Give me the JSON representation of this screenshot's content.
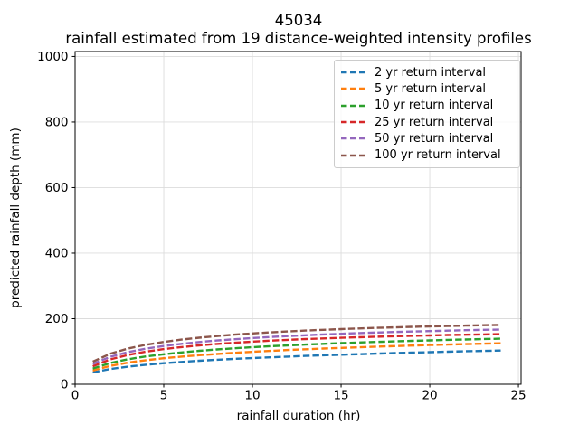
{
  "figure": {
    "background": "#ffffff"
  },
  "chart_data": {
    "type": "line",
    "title": "45034",
    "subtitle": "rainfall estimated from 19 distance-weighted intensity profiles",
    "xlabel": "rainfall duration (hr)",
    "ylabel": "predicted rainfall depth (mm)",
    "xlim": [
      0,
      25.15
    ],
    "ylim": [
      0,
      1015
    ],
    "xticks": [
      0,
      5,
      10,
      15,
      20,
      25
    ],
    "yticks": [
      0,
      200,
      400,
      600,
      800,
      1000
    ],
    "grid": true,
    "grid_color": "#dcdcdc",
    "axis_color": "#000000",
    "text_color": "#000000",
    "legend_border_color": "#cccccc",
    "legend_position": "upper right",
    "line_style": "dashed",
    "x_hours": [
      1,
      2,
      3,
      4,
      5,
      6,
      7,
      8,
      9,
      10,
      11,
      12,
      13,
      14,
      15,
      16,
      17,
      18,
      19,
      20,
      21,
      22,
      23,
      24
    ],
    "series": [
      {
        "name": "2 yr return interval",
        "color": "#1f77b4",
        "values": [
          36.0,
          46.7,
          53.9,
          59.6,
          64.2,
          68.1,
          71.6,
          74.7,
          77.5,
          80.0,
          82.3,
          84.5,
          86.5,
          88.5,
          90.2,
          91.9,
          93.5,
          95.1,
          96.5,
          97.9,
          99.3,
          100.6,
          101.8,
          103.0
        ]
      },
      {
        "name": "5 yr return interval",
        "color": "#ff7f0e",
        "values": [
          42.0,
          56.4,
          66.1,
          73.4,
          79.4,
          84.4,
          88.7,
          92.5,
          95.9,
          99.0,
          101.8,
          104.4,
          106.8,
          109.0,
          111.0,
          112.9,
          114.8,
          116.5,
          118.1,
          119.6,
          121.1,
          122.4,
          123.8,
          125.0
        ]
      },
      {
        "name": "10 yr return interval",
        "color": "#2ca02c",
        "values": [
          48.0,
          65.2,
          76.4,
          84.9,
          91.6,
          97.2,
          102.0,
          106.1,
          109.8,
          113.0,
          116.0,
          118.6,
          121.1,
          123.3,
          125.4,
          127.3,
          129.2,
          130.8,
          132.4,
          133.9,
          135.3,
          136.6,
          137.9,
          139.0
        ]
      },
      {
        "name": "25 yr return interval",
        "color": "#d62728",
        "values": [
          55.0,
          76.1,
          89.6,
          99.5,
          107.2,
          113.4,
          118.5,
          122.9,
          126.7,
          130.0,
          132.9,
          135.5,
          137.8,
          139.9,
          141.8,
          143.5,
          145.1,
          146.5,
          147.8,
          149.0,
          150.2,
          151.2,
          152.1,
          153.0
        ]
      },
      {
        "name": "50 yr return interval",
        "color": "#9467bd",
        "values": [
          62.0,
          84.1,
          98.2,
          108.6,
          116.6,
          123.2,
          128.7,
          133.4,
          137.4,
          141.0,
          144.2,
          147.0,
          149.6,
          151.9,
          154.0,
          156.0,
          157.7,
          159.4,
          160.9,
          162.3,
          163.6,
          164.8,
          166.0,
          167.0
        ]
      },
      {
        "name": "100 yr return interval",
        "color": "#8c564b",
        "values": [
          69.0,
          93.6,
          109.2,
          120.4,
          129.2,
          136.2,
          142.0,
          147.0,
          151.3,
          155.0,
          158.2,
          161.2,
          163.8,
          166.1,
          168.3,
          170.2,
          172.0,
          173.6,
          175.1,
          176.4,
          177.7,
          178.9,
          180.0,
          181.0
        ]
      }
    ]
  }
}
